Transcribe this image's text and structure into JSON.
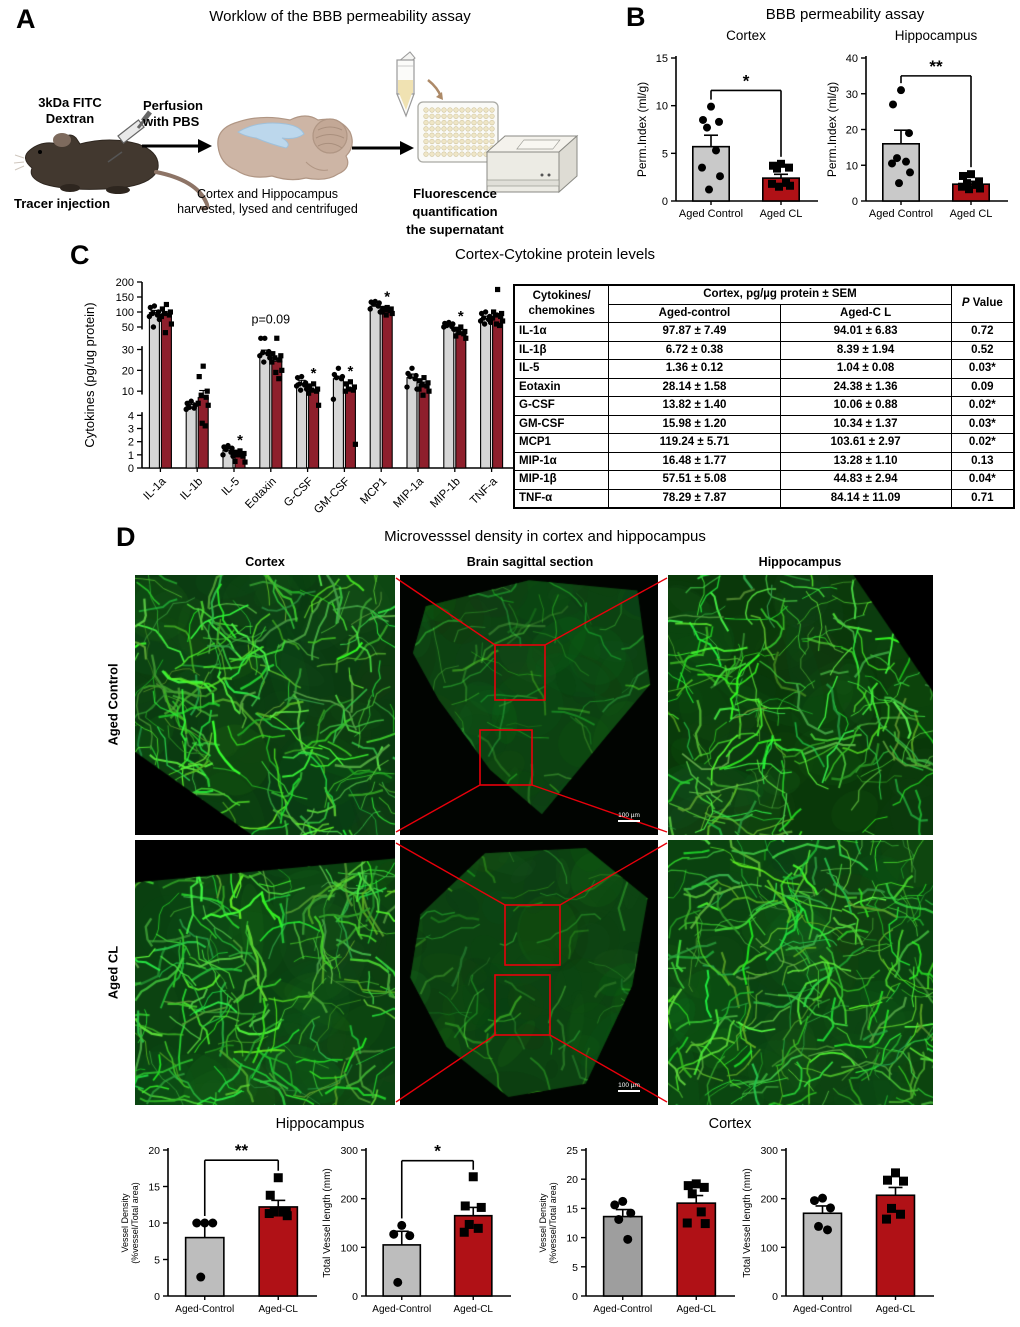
{
  "colors": {
    "control_gray": "#C9C9C9",
    "control_gray_dark": "#9E9E9E",
    "control_gray_light": "#BDBDBD",
    "cl_red": "#B01116",
    "cl_red_dark": "#8E1F2C",
    "black": "#000000",
    "roi_red": "#E8000B",
    "micro_green": "#27A02C"
  },
  "panelA": {
    "label": "A",
    "title": "Worklow of the BBB permeability assay",
    "mouse_label_line1": "3kDa FITC",
    "mouse_label_line2": "Dextran",
    "mouse_caption": "Tracer injection",
    "arrow1_label_line1": "Perfusion",
    "arrow1_label_line2": "with PBS",
    "brain_caption_line1": "Cortex and Hippocampus",
    "brain_caption_line2": "harvested, lysed and centrifuged",
    "plate_caption_line1": "Fluorescence",
    "plate_caption_line2": "quantification",
    "plate_caption_line3": "the supernatant"
  },
  "panelB": {
    "label": "B",
    "title": "BBB permeability assay"
  },
  "panelC": {
    "label": "C",
    "title": "Cortex-Cytokine protein levels",
    "table": {
      "col1_line1": "Cytokines/",
      "col1_line2": "chemokines",
      "span_header": "Cortex, pg/µg protein ± SEM",
      "sub_headers": [
        "Aged-control",
        "Aged-C L"
      ],
      "p_header_italic": "P",
      "p_header_rest": " Value",
      "rows": [
        [
          "IL-1α",
          "97.87 ± 7.49",
          "94.01 ± 6.83",
          "0.72"
        ],
        [
          "IL-1β",
          "6.72 ± 0.38",
          "8.39 ± 1.94",
          "0.52"
        ],
        [
          "IL-5",
          "1.36 ± 0.12",
          "1.04 ± 0.08",
          "0.03*"
        ],
        [
          "Eotaxin",
          "28.14 ± 1.58",
          "24.38 ± 1.36",
          "0.09"
        ],
        [
          "G-CSF",
          "13.82 ± 1.40",
          "10.06 ± 0.88",
          "0.02*"
        ],
        [
          "GM-CSF",
          "15.98 ± 1.20",
          "10.34 ± 1.37",
          "0.03*"
        ],
        [
          "MCP1",
          "119.24 ± 5.71",
          "103.61 ± 2.97",
          "0.02*"
        ],
        [
          "MIP-1α",
          "16.48 ± 1.77",
          "13.28 ± 1.10",
          "0.13"
        ],
        [
          "MIP-1β",
          "57.51 ± 5.08",
          "44.83 ± 2.94",
          "0.04*"
        ],
        [
          "TNF-α",
          "78.29 ± 7.87",
          "84.14 ± 11.09",
          "0.71"
        ]
      ]
    }
  },
  "panelD": {
    "label": "D",
    "title": "Microvesssel density in cortex and hippocampus",
    "col_headers": [
      "Cortex",
      "Brain sagittal section",
      "Hippocampus"
    ],
    "row_labels": [
      "Aged Control",
      "Aged CL"
    ],
    "scale_bar": "100 µm",
    "bottom_title_left": "Hippocampus",
    "bottom_title_right": "Cortex"
  },
  "chart_data": [
    {
      "id": "b-cortex",
      "type": "bar",
      "title": "Cortex",
      "ylabel": [
        "Perm.Index (ml/g)"
      ],
      "ylim": [
        0,
        15
      ],
      "yticks": [
        0,
        5,
        10,
        15
      ],
      "categories": [
        "Aged Control",
        "Aged CL"
      ],
      "bars": [
        {
          "value": 5.7,
          "err": 1.2,
          "fill": "#C9C9C9",
          "marker": "circle",
          "points": [
            9.9,
            8.5,
            8.3,
            7.7,
            5.3,
            3.5,
            2.6,
            1.2
          ]
        },
        {
          "value": 2.4,
          "err": 0.4,
          "fill": "#B01116",
          "marker": "square",
          "points": [
            3.9,
            3.7,
            3.5,
            3.4,
            1.9,
            1.8,
            1.6,
            1.5
          ]
        }
      ],
      "sig": {
        "label": "*",
        "y": 11.6
      }
    },
    {
      "id": "b-hippo",
      "type": "bar",
      "title": "Hippocampus",
      "ylabel": [
        "Perm.Index (ml/g)"
      ],
      "ylim": [
        0,
        40
      ],
      "yticks": [
        0,
        10,
        20,
        30,
        40
      ],
      "categories": [
        "Aged Control",
        "Aged CL"
      ],
      "bars": [
        {
          "value": 16,
          "err": 3.8,
          "fill": "#C9C9C9",
          "marker": "circle",
          "points": [
            31,
            27,
            19,
            12,
            11,
            10.5,
            8,
            5
          ]
        },
        {
          "value": 4.7,
          "err": 0.8,
          "fill": "#B01116",
          "marker": "square",
          "points": [
            7.5,
            7,
            5.5,
            5,
            4.5,
            4,
            3.5,
            3.3
          ]
        }
      ],
      "sig": {
        "label": "**",
        "y": 35
      }
    },
    {
      "id": "c-cytokines",
      "type": "bar-broken-axis",
      "title": "Cortex-Cytokine protein levels",
      "ylabel": "Cytokines (pg/ug protein)",
      "yticks": [
        0,
        1,
        2,
        3,
        4,
        10,
        20,
        30,
        50,
        100,
        150,
        200
      ],
      "scale_knots": [
        [
          0,
          0
        ],
        [
          4,
          0.283
        ],
        [
          10,
          0.413
        ],
        [
          30,
          0.637
        ],
        [
          50,
          0.758
        ],
        [
          200,
          1.0
        ]
      ],
      "axis_gaps": [
        [
          0.3,
          0.395
        ],
        [
          0.655,
          0.745
        ]
      ],
      "categories": [
        "IL-1a",
        "IL-1b",
        "IL-5",
        "Eotaxin",
        "G-CSF",
        "GM-CSF",
        "MCP1",
        "MIP-1a",
        "MIP-1b",
        "TNF-a"
      ],
      "series": [
        {
          "name": "Aged-control",
          "fill": "#D6D6D6",
          "marker": "circle",
          "values": [
            97.87,
            6.72,
            1.36,
            28.14,
            13.82,
            15.98,
            119.24,
            16.48,
            57.51,
            78.29
          ],
          "sem": [
            7.49,
            0.38,
            0.12,
            1.58,
            1.4,
            1.2,
            5.71,
            1.77,
            5.08,
            7.87
          ],
          "points": [
            [
              120,
              115,
              100,
              95,
              90,
              85,
              75,
              50
            ],
            [
              7.5,
              7,
              6.5,
              6,
              5.8,
              5.5
            ],
            [
              1.7,
              1.6,
              1.5,
              1.4,
              1.2,
              1.0,
              0.9
            ],
            [
              40,
              40,
              29,
              28.5,
              28,
              27,
              26,
              24
            ],
            [
              17,
              16.5,
              14,
              13.5,
              13,
              12.5,
              11,
              10.5
            ],
            [
              21,
              18,
              17,
              16.5,
              16,
              8
            ],
            [
              135,
              133,
              130,
              128,
              120,
              110,
              100
            ],
            [
              21,
              18.5,
              17.5,
              17,
              16,
              12,
              11
            ],
            [
              65,
              62,
              60,
              55,
              52,
              50,
              48
            ],
            [
              100,
              95,
              85,
              80,
              75,
              70,
              65,
              60
            ]
          ]
        },
        {
          "name": "Aged-CL",
          "fill": "#8E1F2C",
          "marker": "square",
          "values": [
            94.01,
            8.39,
            1.04,
            24.38,
            10.06,
            10.34,
            103.61,
            13.28,
            44.83,
            84.14
          ],
          "sem": [
            6.83,
            1.94,
            0.08,
            1.36,
            0.88,
            1.37,
            2.97,
            1.1,
            2.94,
            11.09
          ],
          "points": [
            [
              125,
              110,
              100,
              95,
              90,
              85,
              60,
              45
            ],
            [
              22,
              17,
              10,
              9,
              8.5,
              7,
              6.5,
              3.4,
              3.2
            ],
            [
              1.3,
              1.2,
              1.1,
              1.0,
              0.9,
              0.5,
              0.45
            ],
            [
              40,
              28,
              27,
              26,
              25,
              24,
              20,
              19,
              16
            ],
            [
              13.5,
              12.5,
              11,
              10.5,
              10,
              9.5,
              6.5
            ],
            [
              14.5,
              13.5,
              12,
              11,
              10.5,
              10,
              1.8
            ],
            [
              115,
              112,
              110,
              108,
              105,
              100,
              95,
              90
            ],
            [
              16.5,
              15,
              14,
              13,
              12.5,
              11,
              10,
              9
            ],
            [
              50,
              48,
              46,
              45,
              44,
              42,
              40
            ],
            [
              175,
              100,
              95,
              90,
              85,
              80,
              70,
              60,
              55
            ]
          ]
        }
      ],
      "annotations": [
        {
          "category": "IL-5",
          "text": "*"
        },
        {
          "category": "Eotaxin",
          "text": "p=0.09"
        },
        {
          "category": "G-CSF",
          "text": "*"
        },
        {
          "category": "GM-CSF",
          "text": "*"
        },
        {
          "category": "MCP1",
          "text": "*"
        },
        {
          "category": "MIP-1b",
          "text": "*"
        }
      ]
    },
    {
      "id": "d-hippo-density",
      "type": "bar",
      "title": "",
      "ylabel": [
        "Vessel Density",
        "(%vessel/Total area)"
      ],
      "ylim": [
        0,
        20
      ],
      "yticks": [
        0,
        5,
        10,
        15,
        20
      ],
      "categories": [
        "Aged-Control",
        "Aged-CL"
      ],
      "bars": [
        {
          "value": 8.0,
          "err": 1.9,
          "fill": "#BDBDBD",
          "marker": "circle",
          "points": [
            10,
            10,
            10,
            2.6
          ]
        },
        {
          "value": 12.2,
          "err": 0.9,
          "fill": "#B01116",
          "marker": "square",
          "points": [
            16.2,
            13.8,
            11.6,
            11.5,
            11.5,
            11.3,
            11.0
          ]
        }
      ],
      "sig": {
        "label": "**",
        "y": 18.6
      }
    },
    {
      "id": "d-hippo-length",
      "type": "bar",
      "title": "",
      "ylabel": [
        "Total Vessel length (mm)"
      ],
      "ylim": [
        0,
        300
      ],
      "yticks": [
        0,
        100,
        200,
        300
      ],
      "categories": [
        "Aged-Control",
        "Aged-CL"
      ],
      "bars": [
        {
          "value": 105,
          "err": 28,
          "fill": "#BDBDBD",
          "marker": "circle",
          "points": [
            145,
            127,
            124,
            28
          ]
        },
        {
          "value": 165,
          "err": 17,
          "fill": "#B01116",
          "marker": "square",
          "points": [
            245,
            185,
            182,
            147,
            139,
            131
          ]
        }
      ],
      "sig": {
        "label": "*",
        "y": 278
      }
    },
    {
      "id": "d-cortex-density",
      "type": "bar",
      "title": "",
      "ylabel": [
        "Vessel Density",
        "(%vessel/Total area)"
      ],
      "ylim": [
        0,
        25
      ],
      "yticks": [
        0,
        5,
        10,
        15,
        20,
        25
      ],
      "categories": [
        "Aged-Control",
        "Aged-CL"
      ],
      "bars": [
        {
          "value": 13.6,
          "err": 1.2,
          "fill": "#9E9E9E",
          "marker": "circle",
          "points": [
            16.2,
            15.6,
            14.2,
            13.1,
            9.7
          ]
        },
        {
          "value": 15.9,
          "err": 1.3,
          "fill": "#B01116",
          "marker": "square",
          "points": [
            19.2,
            18.9,
            18.6,
            17.5,
            14.4,
            12.5,
            12.4
          ]
        }
      ],
      "sig": null
    },
    {
      "id": "d-cortex-length",
      "type": "bar",
      "title": "",
      "ylabel": [
        "Total Vessel length (mm)"
      ],
      "ylim": [
        0,
        300
      ],
      "yticks": [
        0,
        100,
        200,
        300
      ],
      "categories": [
        "Aged-Control",
        "Aged-CL"
      ],
      "bars": [
        {
          "value": 170,
          "err": 15,
          "fill": "#BDBDBD",
          "marker": "circle",
          "points": [
            201,
            196,
            181,
            143,
            136
          ]
        },
        {
          "value": 207,
          "err": 16,
          "fill": "#B01116",
          "marker": "square",
          "points": [
            253,
            238,
            236,
            180,
            168,
            158
          ]
        }
      ],
      "sig": null
    }
  ]
}
